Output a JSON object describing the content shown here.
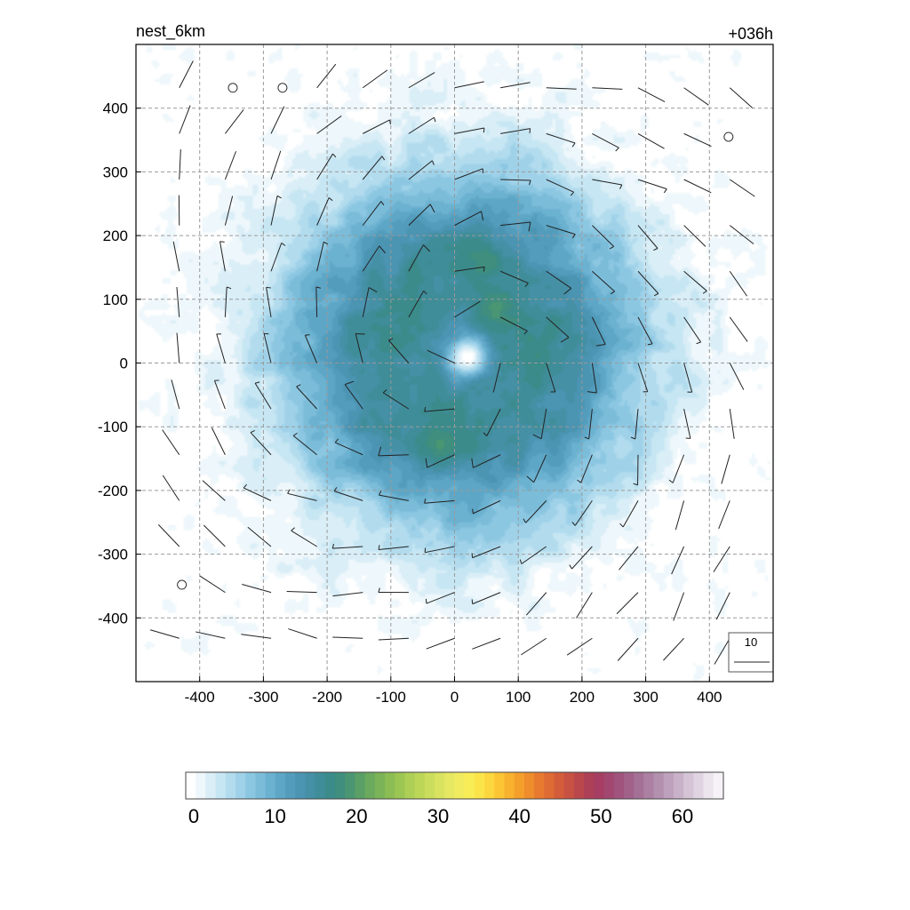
{
  "chart_data": {
    "type": "heatmap",
    "title_left": "nest_6km",
    "title_right": "+036h",
    "xlabel": "",
    "ylabel": "",
    "xlim": [
      -500,
      500
    ],
    "ylim": [
      -500,
      500
    ],
    "x_ticks": [
      -400,
      -300,
      -200,
      -100,
      0,
      100,
      200,
      300,
      400
    ],
    "y_ticks": [
      400,
      300,
      200,
      100,
      0,
      -100,
      -200,
      -300,
      -400
    ],
    "x_tick_labels": [
      "-400",
      "-300",
      "-200",
      "-100",
      "0",
      "100",
      "200",
      "300",
      "400"
    ],
    "y_tick_labels": [
      "400",
      "300",
      "200",
      "100",
      "0",
      "-100",
      "-200",
      "-300",
      "-400"
    ],
    "grid": true,
    "field": {
      "description_units": "wind speed shading",
      "center": [
        10,
        20
      ],
      "peak_value": 17,
      "ring_radius": 110,
      "outer_decay_radius": 330,
      "eye_value": 0,
      "eye_center": [
        20,
        10
      ],
      "eye_radius": 28,
      "max_embedded": [
        [
          -25,
          -130,
          19
        ],
        [
          60,
          80,
          19
        ],
        [
          40,
          160,
          18
        ]
      ]
    },
    "wind_barbs": {
      "spacing": 72,
      "reference_speed_label": "10",
      "calm_circles": [
        [
          -348,
          432
        ],
        [
          -270,
          432
        ],
        [
          430,
          355
        ],
        [
          -428,
          -348
        ]
      ],
      "circulation": "counterclockwise",
      "max_speed": 12,
      "max_radius": 170
    },
    "colorbar": {
      "min": 0,
      "max": 66,
      "tick_values": [
        0,
        10,
        20,
        30,
        40,
        50,
        60
      ],
      "tick_labels": [
        "0",
        "10",
        "20",
        "30",
        "40",
        "50",
        "60"
      ],
      "colors": [
        "#ffffff",
        "#eef7fb",
        "#d9eef7",
        "#c6e6f3",
        "#b2dcee",
        "#9fd2e9",
        "#8cc7e2",
        "#7bbcd9",
        "#6bb1d0",
        "#5ea6c6",
        "#539cbc",
        "#4b94b2",
        "#4590a5",
        "#3f8d98",
        "#3b8b8b",
        "#3f8e7e",
        "#4b9672",
        "#5a9f66",
        "#6aa95e",
        "#7bb358",
        "#8cbd54",
        "#9cc653",
        "#adcf55",
        "#bcd658",
        "#cbdd5c",
        "#d9e35f",
        "#e6e861",
        "#f1ec5f",
        "#f8ed56",
        "#fbe449",
        "#fcd63d",
        "#fbc533",
        "#f8b22d",
        "#f49f2a",
        "#ef8c2b",
        "#e77a2f",
        "#de6a34",
        "#d35c3a",
        "#c75142",
        "#ba474b",
        "#ad3f56",
        "#a53e62",
        "#a2476f",
        "#a0537c",
        "#a16189",
        "#a57095",
        "#ac80a2",
        "#b490af",
        "#bea1bc",
        "#c9b2c9",
        "#d5c3d6",
        "#e1d4e2",
        "#ede5ee",
        "#f7f2f8"
      ]
    },
    "colors": {
      "eye": "#ffffff",
      "gridline": "#9a9a9a",
      "barb": "#222222"
    }
  }
}
